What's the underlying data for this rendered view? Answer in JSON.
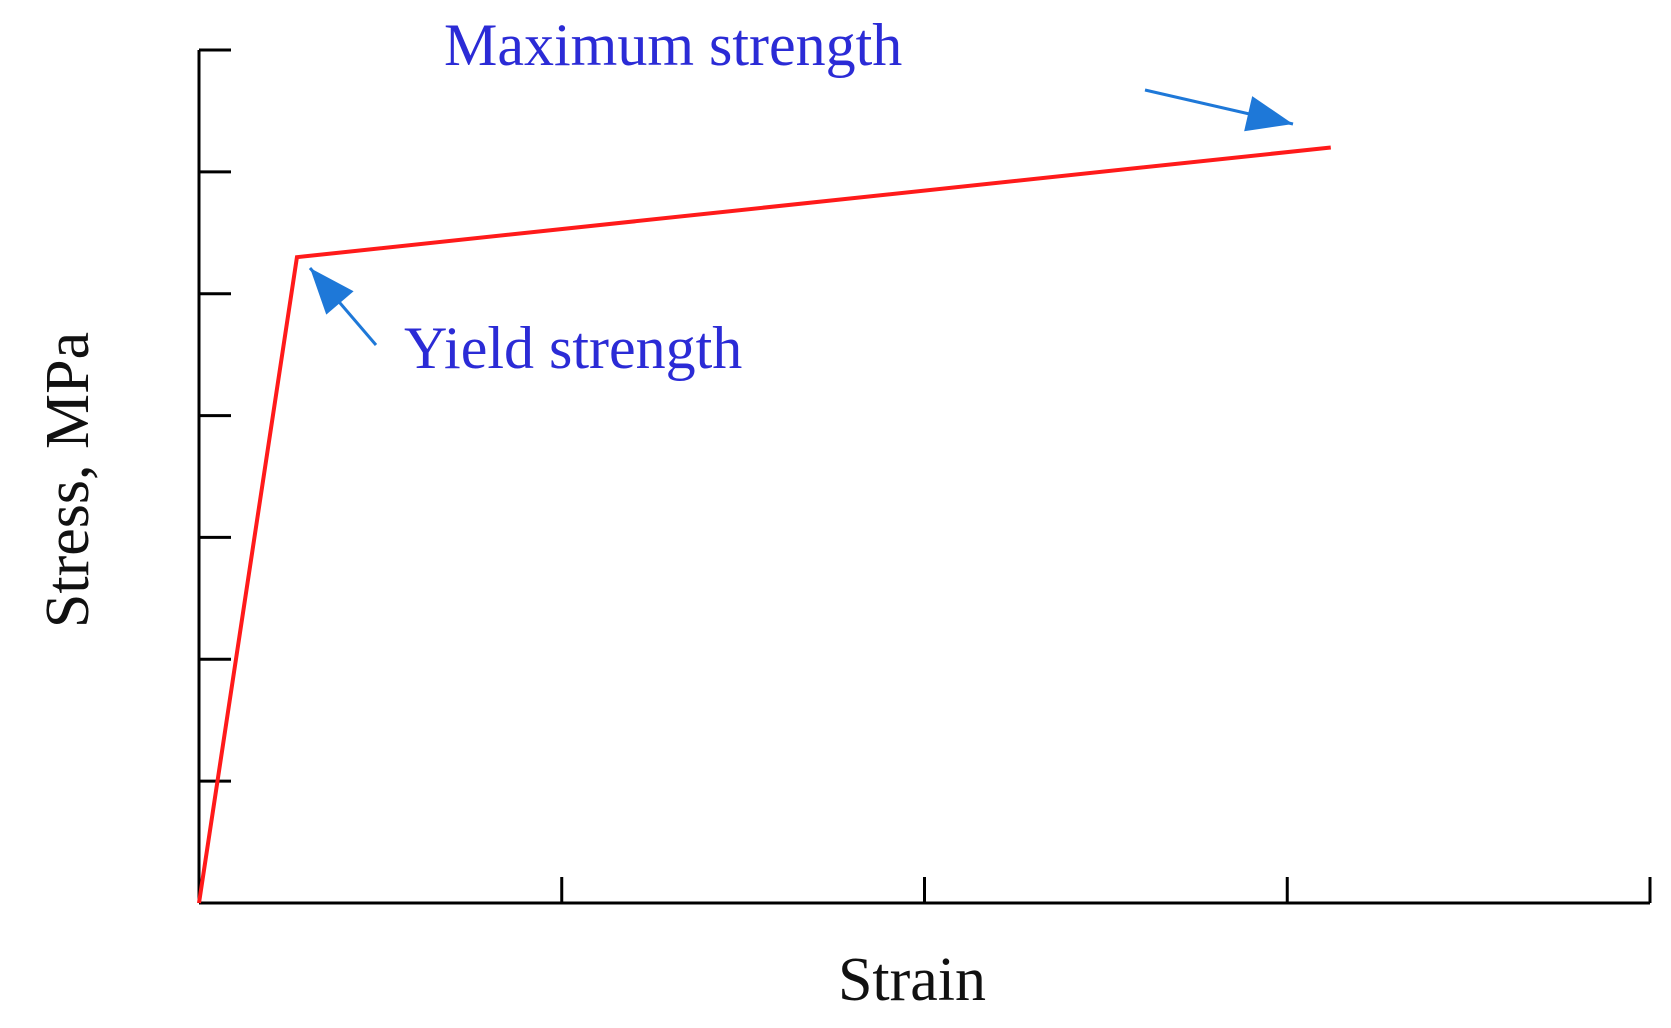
{
  "chart_data": {
    "type": "line",
    "xlabel": "Strain",
    "ylabel": "Stress, MPa",
    "xlim": [
      0,
      4
    ],
    "ylim": [
      0,
      7
    ],
    "x_ticks": [
      0,
      1,
      2,
      3,
      4
    ],
    "y_ticks": [
      0,
      1,
      2,
      3,
      4,
      5,
      6,
      7
    ],
    "grid": false,
    "legend": "none",
    "series": [
      {
        "x": [
          0,
          0.27,
          3.12
        ],
        "y": [
          0,
          5.3,
          6.2
        ]
      }
    ],
    "annotations": [
      {
        "text": "Maximum strength",
        "points_to": {
          "x": 3.12,
          "y": 6.2
        }
      },
      {
        "text": "Yield strength",
        "points_to": {
          "x": 0.27,
          "y": 5.3
        }
      }
    ]
  },
  "colors": {
    "curve": "#ff1a1a",
    "annotation_text": "#2b2bd6",
    "arrow": "#1e78d8",
    "axis": "#000000"
  }
}
